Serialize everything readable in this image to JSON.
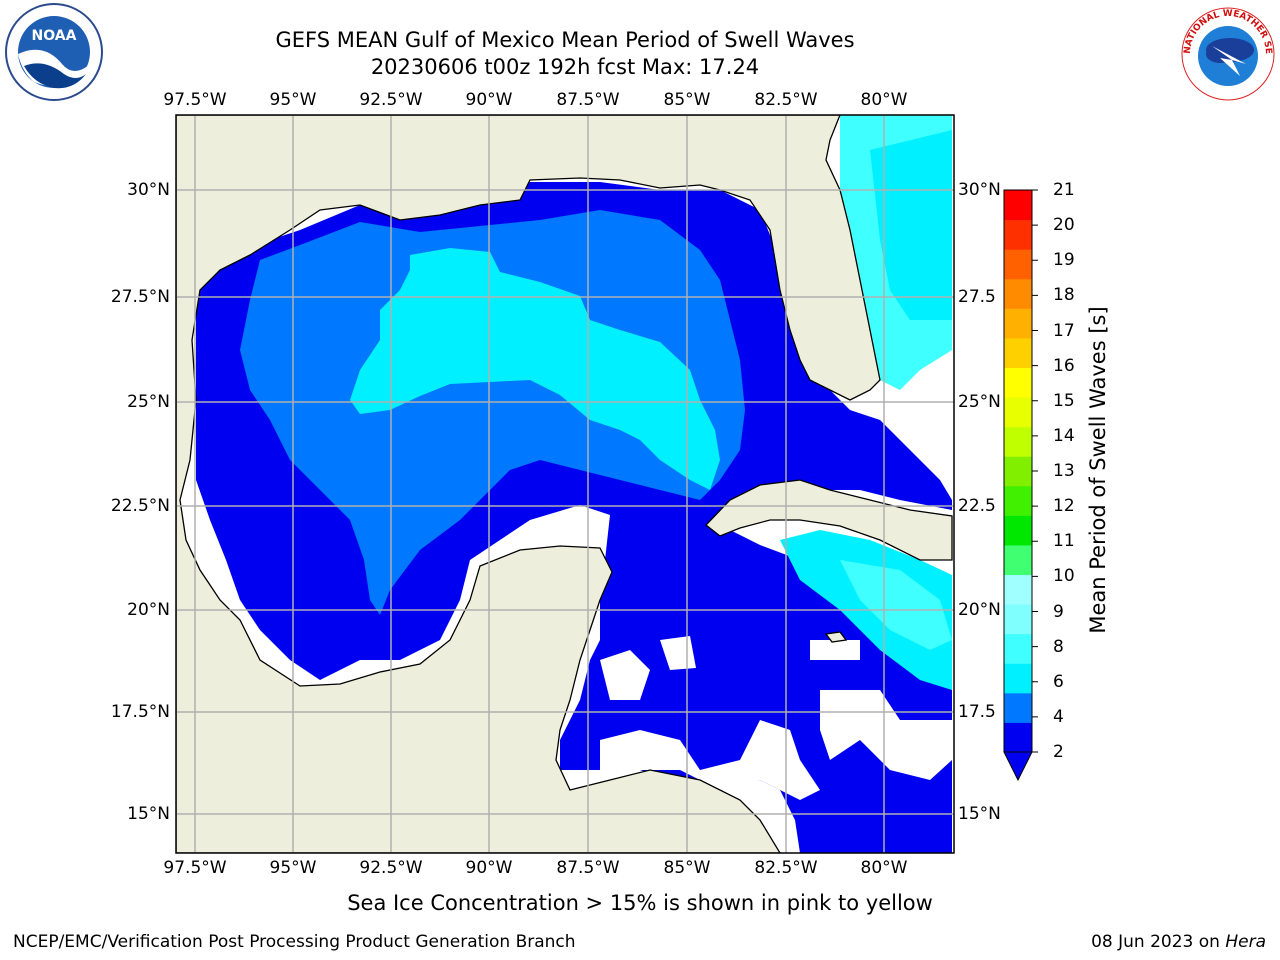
{
  "title_line1": "GEFS MEAN Gulf of Mexico Mean Period of Swell Waves",
  "title_line2": "20230606 t00z 192h fcst   Max: 17.24",
  "lon_labels": [
    "97.5°W",
    "95°W",
    "92.5°W",
    "90°W",
    "87.5°W",
    "85°W",
    "82.5°W",
    "80°W"
  ],
  "lat_labels_left": [
    "30°N",
    "27.5°N",
    "25°N",
    "22.5°N",
    "20°N",
    "17.5°N",
    "15°N"
  ],
  "lat_labels_right": [
    "30°N",
    "27.5",
    "25°N",
    "22.5",
    "20°N",
    "17.5",
    "15°N"
  ],
  "colorbar": {
    "label": "Mean Period of Swell Waves [s]",
    "ticks": [
      "21",
      "20",
      "19",
      "18",
      "17",
      "16",
      "15",
      "14",
      "13",
      "12",
      "11",
      "10",
      "9",
      "8",
      "6",
      "4",
      "2"
    ],
    "colors": [
      "#0000f0",
      "#0078ff",
      "#00f0ff",
      "#40ffff",
      "#80ffff",
      "#a0ffff",
      "#40ff70",
      "#00e800",
      "#40f000",
      "#80f000",
      "#c0ff00",
      "#e8ff00",
      "#ffff00",
      "#ffd000",
      "#ffb000",
      "#ff8c00",
      "#ff6000",
      "#ff3000",
      "#ff0000"
    ],
    "extend": "min"
  },
  "note": "Sea Ice Concentration > 15% is shown in pink to yellow",
  "credit": "NCEP/EMC/Verification Post Processing Product Generation Branch",
  "date": "08 Jun 2023 on ",
  "machine": "Hera",
  "logos": {
    "left": "noaa-logo",
    "right": "nws-logo",
    "left_text": "NOAA",
    "right_text": "NATIONAL WEATHER SERVICE"
  },
  "colors": {
    "land": "#eeeedc",
    "grid": "#b0b0b0",
    "deep_blue": "#0000f0",
    "mid_blue": "#0078ff",
    "cyan": "#00f0ff"
  }
}
